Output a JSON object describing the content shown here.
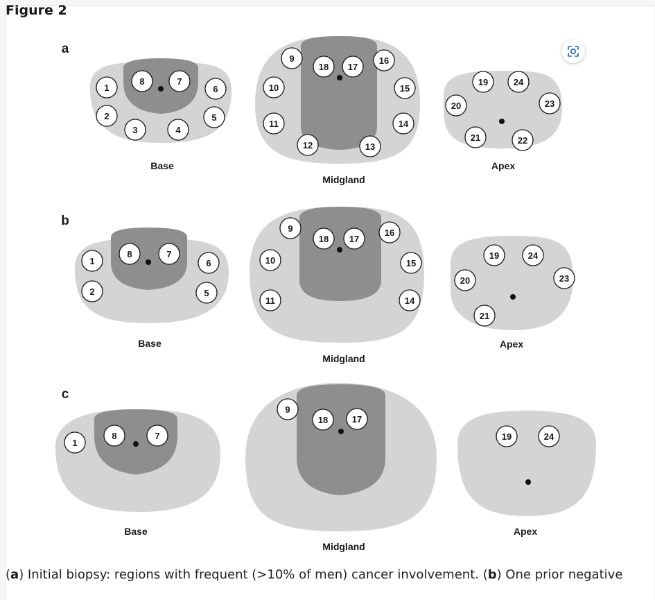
{
  "figure_title": "Figure 2",
  "caption": {
    "a_letter": "a",
    "a_text": ") Initial biopsy: regions with frequent (>10% of men) cancer involvement. (",
    "b_letter": "b",
    "b_text": ") One prior negative"
  },
  "colors": {
    "gland": "#d4d4d4",
    "zone": "#8e8e8e",
    "circle_fill": "#ffffff",
    "circle_stroke": "#1a1a1a"
  },
  "icons": [
    "scan-icon"
  ],
  "panels": [
    {
      "letter": "a",
      "sections": [
        {
          "id": "base",
          "label": "Base",
          "regions": [
            "1",
            "2",
            "3",
            "4",
            "5",
            "6",
            "7",
            "8"
          ]
        },
        {
          "id": "midgland",
          "label": "Midgland",
          "regions": [
            "9",
            "10",
            "11",
            "12",
            "13",
            "14",
            "15",
            "16",
            "17",
            "18"
          ]
        },
        {
          "id": "apex",
          "label": "Apex",
          "regions": [
            "19",
            "20",
            "21",
            "22",
            "23",
            "24"
          ]
        }
      ]
    },
    {
      "letter": "b",
      "sections": [
        {
          "id": "base",
          "label": "Base",
          "regions": [
            "1",
            "2",
            "5",
            "6",
            "7",
            "8"
          ]
        },
        {
          "id": "midgland",
          "label": "Midgland",
          "regions": [
            "9",
            "10",
            "11",
            "14",
            "15",
            "16",
            "17",
            "18"
          ]
        },
        {
          "id": "apex",
          "label": "Apex",
          "regions": [
            "19",
            "20",
            "21",
            "23",
            "24"
          ]
        }
      ]
    },
    {
      "letter": "c",
      "sections": [
        {
          "id": "base",
          "label": "Base",
          "regions": [
            "1",
            "7",
            "8"
          ]
        },
        {
          "id": "midgland",
          "label": "Midgland",
          "regions": [
            "9",
            "17",
            "18"
          ]
        },
        {
          "id": "apex",
          "label": "Apex",
          "regions": [
            "19",
            "24"
          ]
        }
      ]
    }
  ]
}
